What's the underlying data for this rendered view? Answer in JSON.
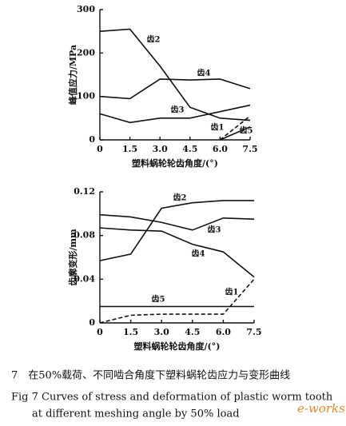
{
  "chart_data": [
    {
      "type": "line",
      "xlabel": "塑料蜗轮轮齿角度/(°)",
      "ylabel": "峰值应力/MPa",
      "x": [
        0,
        1.5,
        3,
        4.5,
        6,
        7.5
      ],
      "xlim": [
        0,
        7.5
      ],
      "xticks": [
        0,
        1.5,
        {
          "value": 3,
          "label": "3.0"
        },
        4.5,
        {
          "value": 6,
          "label": "6.0"
        },
        7.5
      ],
      "ylim": [
        0,
        300
      ],
      "yticks": [
        0,
        100,
        200,
        300
      ],
      "grid": false,
      "series": [
        {
          "name": "齿2",
          "color": "#111111",
          "values": [
            250,
            255,
            170,
            75,
            50,
            45
          ]
        },
        {
          "name": "齿4",
          "color": "#111111",
          "values": [
            100,
            95,
            140,
            138,
            140,
            118
          ]
        },
        {
          "name": "齿3",
          "color": "#111111",
          "values": [
            60,
            40,
            50,
            50,
            65,
            80
          ]
        },
        {
          "name": "齿1",
          "color": "#111111",
          "dashed": true,
          "values": [
            null,
            null,
            null,
            null,
            0,
            55
          ]
        },
        {
          "name": "齿5",
          "color": "#111111",
          "values": [
            null,
            null,
            null,
            null,
            0,
            30
          ]
        }
      ]
    },
    {
      "type": "line",
      "xlabel": "塑料蜗轮轮齿角度/(°)",
      "ylabel": "齿廓变形/mm",
      "x": [
        0,
        1.5,
        3,
        4.5,
        6,
        7.5
      ],
      "xlim": [
        0,
        7.5
      ],
      "xticks": [
        0,
        1.5,
        {
          "value": 3,
          "label": "3.0"
        },
        4.5,
        {
          "value": 6,
          "label": "6.0"
        },
        7.5
      ],
      "ylim": [
        0,
        0.12
      ],
      "yticks": [
        0,
        0.04,
        0.08,
        0.12
      ],
      "grid": false,
      "series": [
        {
          "name": "齿2",
          "color": "#111111",
          "values": [
            0.057,
            0.063,
            0.105,
            0.11,
            0.112,
            0.112
          ]
        },
        {
          "name": "齿3",
          "color": "#111111",
          "values": [
            0.099,
            0.097,
            0.092,
            0.085,
            0.096,
            0.095
          ]
        },
        {
          "name": "齿4",
          "color": "#111111",
          "values": [
            0.087,
            0.085,
            0.084,
            0.072,
            0.065,
            0.042
          ]
        },
        {
          "name": "齿1",
          "color": "#111111",
          "dashed": true,
          "values": [
            0,
            0.007,
            0.008,
            0.008,
            0.008,
            0.04
          ]
        },
        {
          "name": "齿5",
          "color": "#111111",
          "values": [
            0.015,
            0.015,
            0.015,
            0.015,
            0.015,
            0.015
          ]
        }
      ]
    }
  ],
  "caption": {
    "cn": "7　在50%载荷、不同啮合角度下塑料蜗轮齿应力与变形曲线",
    "en1": "Fig 7 Curves of stress and deformation of plastic worm tooth",
    "en2": "at different meshing angle by 50% load"
  },
  "watermark": "e-works"
}
